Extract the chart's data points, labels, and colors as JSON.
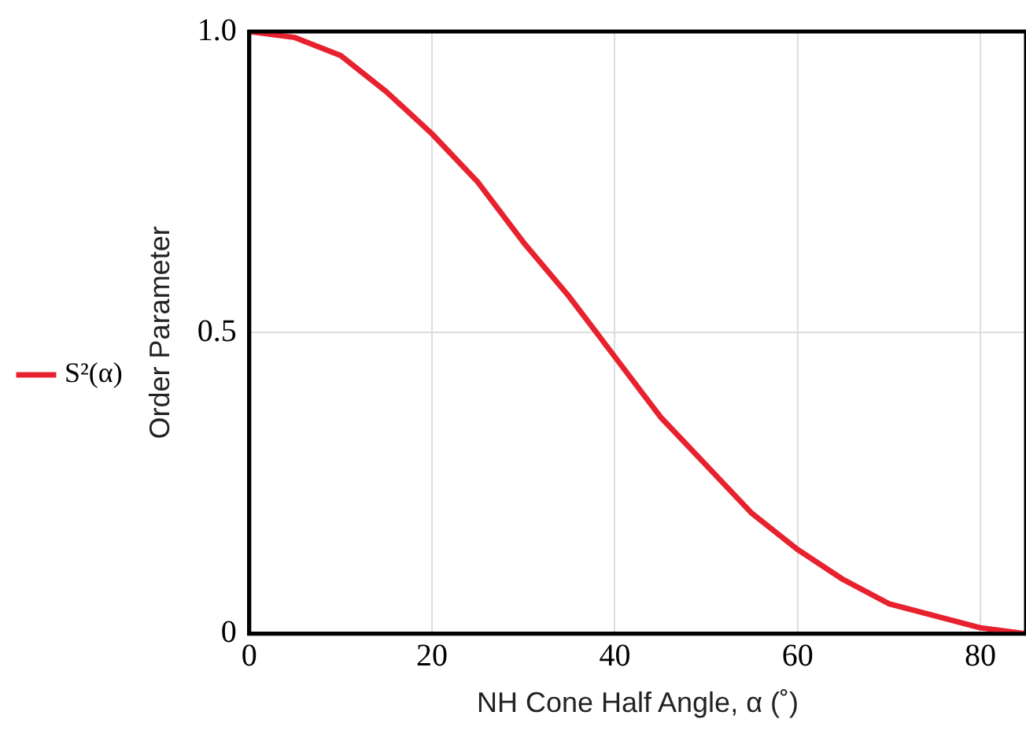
{
  "chart_data": {
    "type": "line",
    "xlabel": "NH Cone Half Angle, α (˚)",
    "ylabel": "Order Parameter",
    "x": [
      0,
      5,
      10,
      15,
      20,
      25,
      30,
      35,
      40,
      45,
      50,
      55,
      60,
      65,
      70,
      75,
      80,
      85
    ],
    "series": [
      {
        "name": "S²(α)",
        "color": "#e8212e",
        "values": [
          1,
          0.99,
          0.96,
          0.9,
          0.83,
          0.75,
          0.65,
          0.56,
          0.46,
          0.36,
          0.28,
          0.2,
          0.14,
          0.09,
          0.05,
          0.03,
          0.01,
          0
        ]
      }
    ],
    "xlim": [
      0,
      85
    ],
    "xticks": [
      0,
      20,
      40,
      60,
      80
    ],
    "ylim": [
      0,
      1
    ],
    "yticks": [
      0,
      {
        "value": 0.5,
        "label": "0.5"
      },
      {
        "value": 1,
        "label": "1.0"
      }
    ],
    "grid": true,
    "legend": "left",
    "marker": "none",
    "line_style": "solid"
  }
}
